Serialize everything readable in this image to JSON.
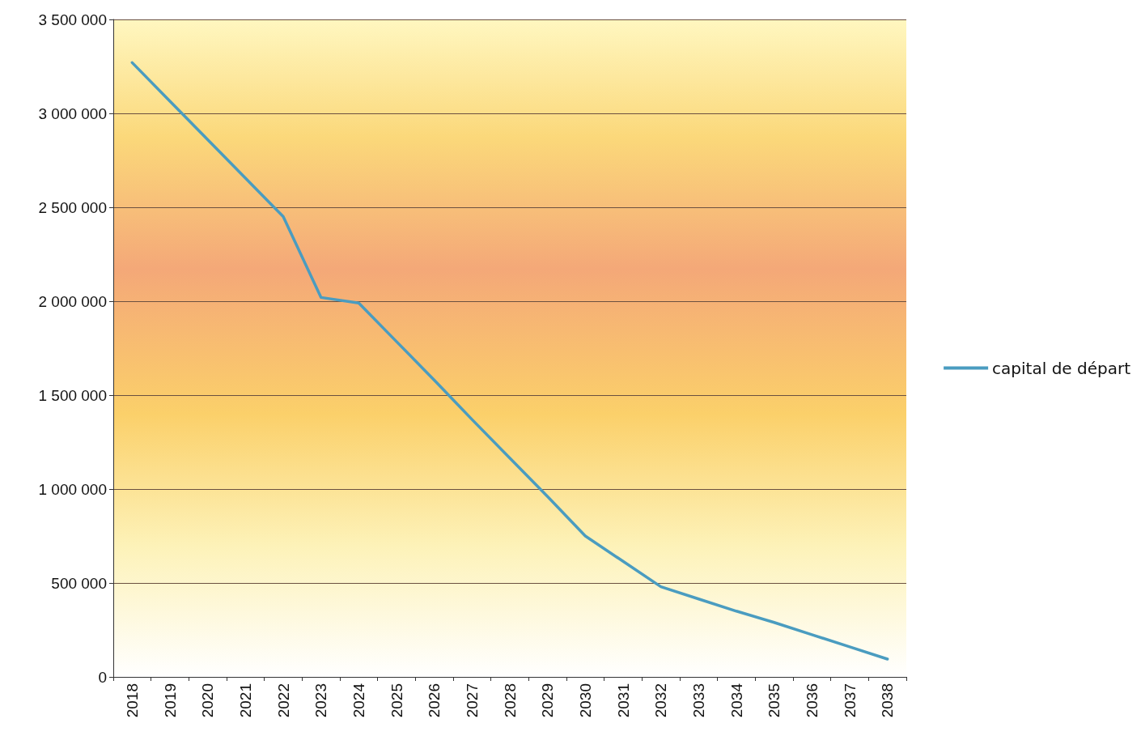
{
  "chart_data": {
    "type": "line",
    "categories": [
      "2018",
      "2019",
      "2020",
      "2021",
      "2022",
      "2023",
      "2024",
      "2025",
      "2026",
      "2027",
      "2028",
      "2029",
      "2030",
      "2031",
      "2032",
      "2033",
      "2034",
      "2035",
      "2036",
      "2037",
      "2038"
    ],
    "series": [
      {
        "name": "capital de départ",
        "color": "#4a9cc0",
        "values": [
          3270000,
          3065000,
          2860000,
          2655000,
          2450000,
          2020000,
          1990000,
          1785000,
          1580000,
          1370000,
          1165000,
          960000,
          750000,
          615000,
          480000,
          415000,
          350000,
          290000,
          225000,
          160000,
          95000
        ]
      }
    ],
    "ylim": [
      0,
      3500000
    ],
    "yticks": [
      {
        "value": 0,
        "label": "0"
      },
      {
        "value": 500000,
        "label": "500 000"
      },
      {
        "value": 1000000,
        "label": "1 000 000"
      },
      {
        "value": 1500000,
        "label": "1 500 000"
      },
      {
        "value": 2000000,
        "label": "2 000 000"
      },
      {
        "value": 2500000,
        "label": "2 500 000"
      },
      {
        "value": 3000000,
        "label": "3 000 000"
      },
      {
        "value": 3500000,
        "label": "3 500 000"
      }
    ],
    "grid": "y",
    "legend": "right",
    "marker": "none",
    "line_style": "solid"
  }
}
